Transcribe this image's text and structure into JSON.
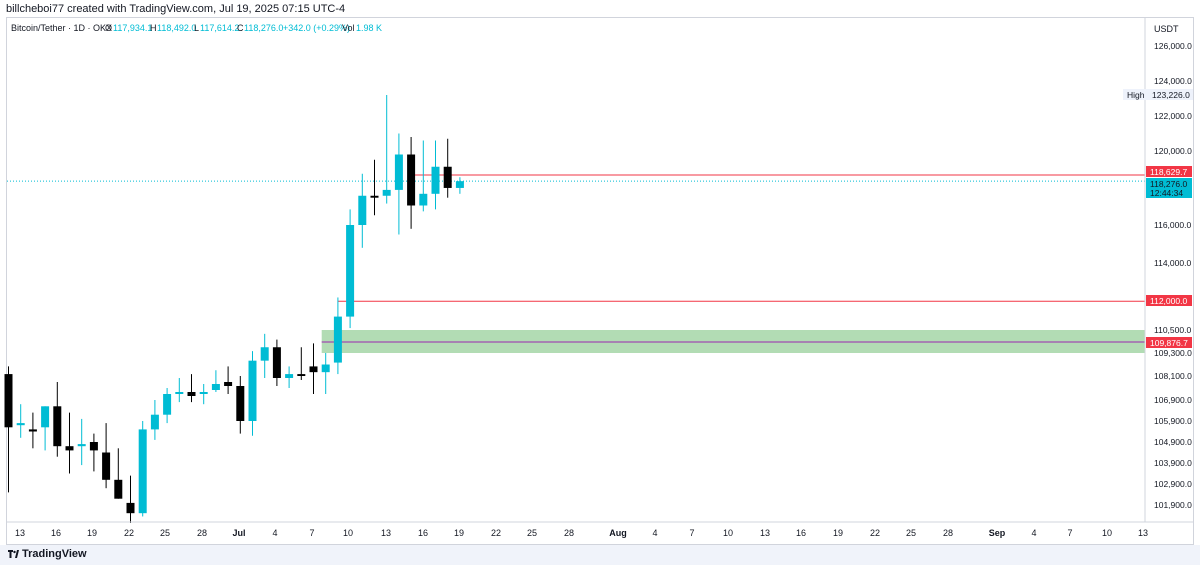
{
  "header": {
    "caption": "billcheboi77 created with TradingView.com, Jul 19, 2025 07:15 UTC-4"
  },
  "legend": {
    "symbol": "Bitcoin/Tether · 1D · OKX",
    "o_label": "O",
    "o_value": "117,934.1",
    "h_label": "H",
    "h_value": "118,492.0",
    "l_label": "L",
    "l_value": "117,614.2",
    "c_label": "C",
    "c_value": "118,276.0",
    "change": "+342.0 (+0.29%)",
    "vol_label": "Vol",
    "vol_value": "1.98 K"
  },
  "price_axis": {
    "currency": "USDT",
    "labels": [
      "126,000.0",
      "124,000.0",
      "122,000.0",
      "120,000.0",
      "116,000.0",
      "114,000.0",
      "110,500.0",
      "109,300.0",
      "108,100.0",
      "106,900.0",
      "105,900.0",
      "104,900.0",
      "103,900.0",
      "102,900.0",
      "101,900.0"
    ]
  },
  "markers": {
    "high_label": "High",
    "high_value": "123,226.0",
    "level_top": "118,629.7",
    "last_price": "118,276.0",
    "countdown": "12:44:34",
    "level_mid": "112,000.0",
    "level_zone": "109,876.7"
  },
  "time_axis": {
    "labels": [
      "13",
      "16",
      "19",
      "22",
      "25",
      "28",
      "Jul",
      "4",
      "7",
      "10",
      "13",
      "16",
      "19",
      "22",
      "25",
      "28",
      "Aug",
      "4",
      "7",
      "10",
      "13",
      "16",
      "19",
      "22",
      "25",
      "28",
      "Sep",
      "4",
      "7",
      "10",
      "13"
    ]
  },
  "footer": {
    "brand": "TradingView"
  },
  "colors": {
    "up": "#00bcd4",
    "down": "#000000",
    "level": "#f23645",
    "zone": "#a5d6a7",
    "zone_line": "#9c27b0",
    "price_line": "#00bcd4"
  },
  "chart_data": {
    "type": "candlestick",
    "symbol": "Bitcoin/Tether",
    "interval": "1D",
    "exchange": "OKX",
    "x": [
      "Jun 12",
      "Jun 13",
      "Jun 14",
      "Jun 15",
      "Jun 16",
      "Jun 17",
      "Jun 18",
      "Jun 19",
      "Jun 20",
      "Jun 21",
      "Jun 22",
      "Jun 23",
      "Jun 24",
      "Jun 25",
      "Jun 26",
      "Jun 27",
      "Jun 28",
      "Jun 29",
      "Jun 30",
      "Jul 1",
      "Jul 2",
      "Jul 3",
      "Jul 4",
      "Jul 5",
      "Jul 6",
      "Jul 7",
      "Jul 8",
      "Jul 9",
      "Jul 10",
      "Jul 11",
      "Jul 12",
      "Jul 13",
      "Jul 14",
      "Jul 15",
      "Jul 16",
      "Jul 17",
      "Jul 18",
      "Jul 19"
    ],
    "open": [
      108200,
      105700,
      105500,
      105600,
      106600,
      104700,
      104700,
      104900,
      104400,
      103100,
      102000,
      100900,
      105500,
      106200,
      107200,
      107300,
      107200,
      107400,
      107800,
      107600,
      105900,
      108900,
      109600,
      108000,
      108200,
      108600,
      108300,
      108800,
      111200,
      116000,
      117500,
      117500,
      117800,
      119800,
      117000,
      117600,
      119100,
      117900
    ],
    "high": [
      108600,
      106700,
      106300,
      106600,
      107800,
      106300,
      106000,
      105300,
      105800,
      104600,
      103300,
      105900,
      106900,
      107500,
      108000,
      108200,
      107700,
      108400,
      108600,
      108100,
      109400,
      110300,
      110000,
      108600,
      109600,
      109800,
      109300,
      112200,
      116800,
      118700,
      119500,
      123200,
      121000,
      120800,
      120600,
      120600,
      120700,
      118500
    ],
    "low": [
      102500,
      105100,
      104600,
      104500,
      104200,
      103400,
      103800,
      103500,
      102700,
      102200,
      99700,
      100500,
      105000,
      105800,
      106800,
      106800,
      106700,
      107300,
      107200,
      105300,
      105200,
      108000,
      107600,
      107500,
      107900,
      107200,
      107200,
      108200,
      110600,
      114800,
      116500,
      117100,
      115500,
      115800,
      116700,
      116800,
      117400,
      117600
    ],
    "close": [
      105600,
      105800,
      105400,
      106600,
      104700,
      104500,
      104800,
      104500,
      103100,
      102200,
      100900,
      105500,
      106200,
      107200,
      107300,
      107100,
      107300,
      107700,
      107600,
      105900,
      108900,
      109600,
      108000,
      108200,
      108100,
      108300,
      108700,
      111200,
      116000,
      117500,
      117400,
      117800,
      119800,
      117000,
      117600,
      119100,
      117900,
      118276
    ]
  }
}
